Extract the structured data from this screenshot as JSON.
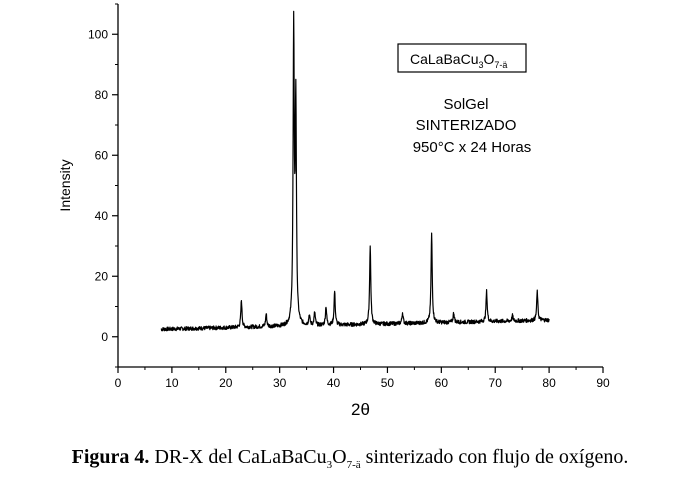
{
  "chart_data": {
    "type": "line",
    "xlabel": "2θ",
    "ylabel": "Intensity",
    "xlim": [
      0,
      90
    ],
    "ylim": [
      -10,
      110
    ],
    "x_ticks": [
      0,
      10,
      20,
      30,
      40,
      50,
      60,
      70,
      80,
      90
    ],
    "y_ticks": [
      0,
      20,
      40,
      60,
      80,
      100
    ],
    "grid": false,
    "legend": {
      "formula_base": "CaLaBaCu",
      "formula_sub1": "3",
      "formula_mid": "O",
      "formula_sub2": "7-ä",
      "placement": "top-right"
    },
    "annotation": [
      "SolGel",
      "SINTERIZADO",
      "950°C x 24 Horas"
    ],
    "series": [
      {
        "x_start": 8,
        "x_end": 80,
        "baseline_start": 2.5,
        "baseline_end": 5.5,
        "peaks": [
          {
            "x": 22.9,
            "y": 12
          },
          {
            "x": 27.5,
            "y": 7.5
          },
          {
            "x": 32.6,
            "y": 100
          },
          {
            "x": 33.0,
            "y": 76
          },
          {
            "x": 35.5,
            "y": 7
          },
          {
            "x": 36.5,
            "y": 8
          },
          {
            "x": 38.6,
            "y": 10
          },
          {
            "x": 40.2,
            "y": 15
          },
          {
            "x": 46.8,
            "y": 30
          },
          {
            "x": 52.8,
            "y": 8
          },
          {
            "x": 58.2,
            "y": 34
          },
          {
            "x": 62.3,
            "y": 8
          },
          {
            "x": 68.4,
            "y": 15
          },
          {
            "x": 73.2,
            "y": 7
          },
          {
            "x": 77.8,
            "y": 15
          }
        ]
      }
    ]
  },
  "caption": {
    "label": "Figura 4.",
    "text_before": " DR-X del CaLaBaCu",
    "sub1": "3",
    "text_mid": "O",
    "sub2": "7-ä",
    "text_after": " sinterizado  con flujo de oxígeno."
  }
}
